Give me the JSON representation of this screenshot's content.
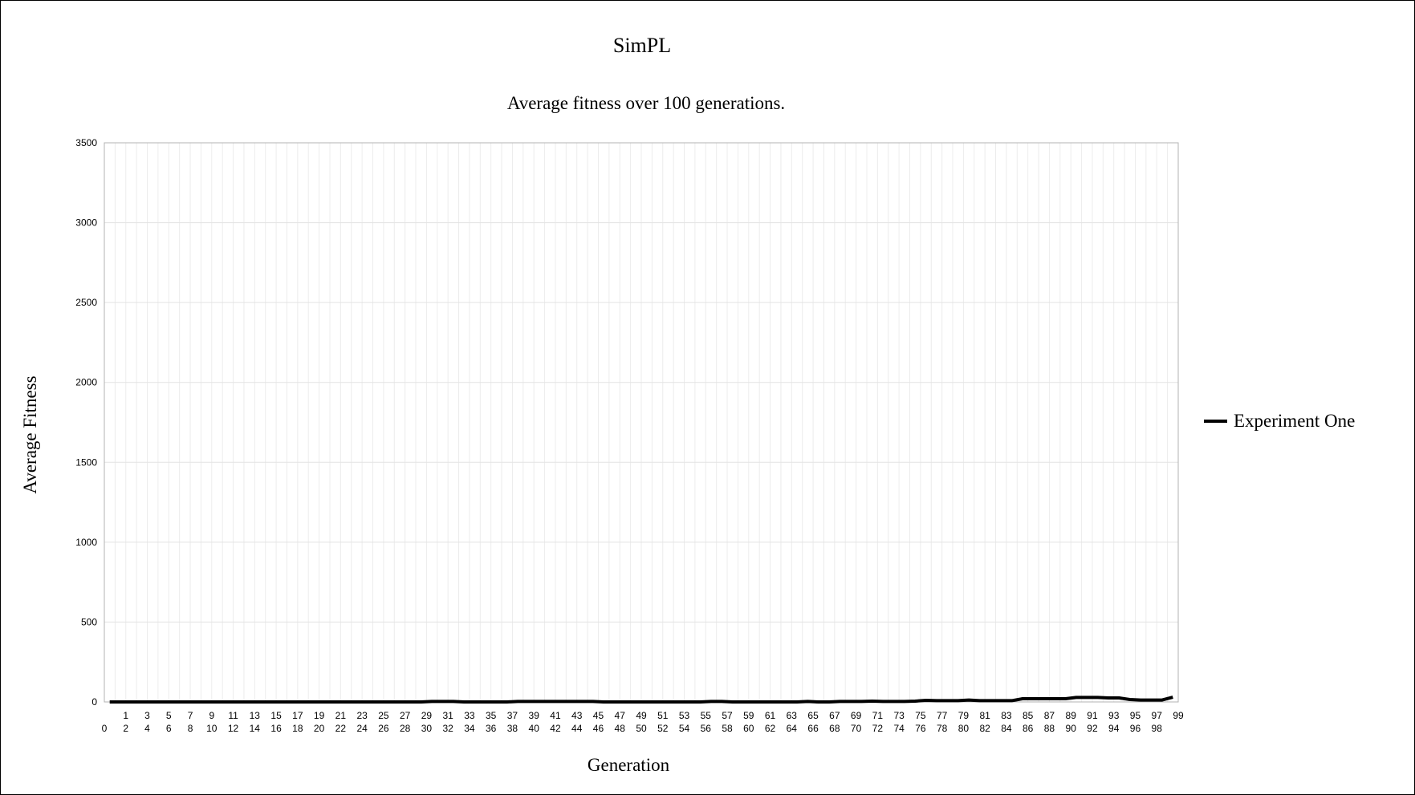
{
  "chart_data": {
    "type": "line",
    "title": "SimPL",
    "subtitle": "Average fitness over 100 generations.",
    "xlabel": "Generation",
    "ylabel": "Average Fitness",
    "ylim": [
      0,
      3500
    ],
    "yticks": [
      0,
      500,
      1000,
      1500,
      2000,
      2500,
      3000,
      3500
    ],
    "grid": true,
    "legend_position": "right",
    "x": [
      0,
      1,
      2,
      3,
      4,
      5,
      6,
      7,
      8,
      9,
      10,
      11,
      12,
      13,
      14,
      15,
      16,
      17,
      18,
      19,
      20,
      21,
      22,
      23,
      24,
      25,
      26,
      27,
      28,
      29,
      30,
      31,
      32,
      33,
      34,
      35,
      36,
      37,
      38,
      39,
      40,
      41,
      42,
      43,
      44,
      45,
      46,
      47,
      48,
      49,
      50,
      51,
      52,
      53,
      54,
      55,
      56,
      57,
      58,
      59,
      60,
      61,
      62,
      63,
      64,
      65,
      66,
      67,
      68,
      69,
      70,
      71,
      72,
      73,
      74,
      75,
      76,
      77,
      78,
      79,
      80,
      81,
      82,
      83,
      84,
      85,
      86,
      87,
      88,
      89,
      90,
      91,
      92,
      93,
      94,
      95,
      96,
      97,
      98,
      99
    ],
    "series": [
      {
        "name": "Experiment One",
        "color": "#000000",
        "values": [
          0,
          0,
          0,
          0,
          0,
          0,
          0,
          0,
          0,
          0,
          0,
          0,
          0,
          0,
          0,
          0,
          0,
          0,
          0,
          0,
          0,
          0,
          0,
          0,
          0,
          0,
          0,
          0,
          0,
          0,
          3,
          3,
          3,
          0,
          0,
          0,
          0,
          0,
          3,
          3,
          3,
          3,
          3,
          3,
          3,
          3,
          0,
          0,
          0,
          0,
          0,
          0,
          0,
          0,
          0,
          0,
          3,
          3,
          0,
          0,
          0,
          0,
          0,
          0,
          0,
          3,
          0,
          0,
          3,
          3,
          3,
          5,
          3,
          3,
          3,
          5,
          10,
          8,
          8,
          8,
          12,
          8,
          8,
          8,
          8,
          20,
          20,
          20,
          20,
          20,
          28,
          28,
          28,
          25,
          25,
          15,
          12,
          12,
          12,
          30
        ]
      }
    ]
  }
}
